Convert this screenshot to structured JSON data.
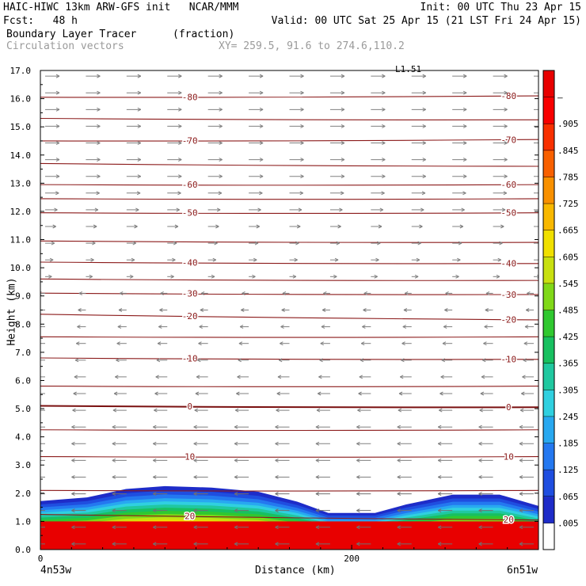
{
  "header": {
    "model_line": "HAIC-HIWC 13km ARW-GFS init   NCAR/MMM",
    "fcst_line": "Fcst:   48 h",
    "init_line": "Init: 00 UTC Thu 23 Apr 15",
    "valid_line": "Valid: 00 UTC Sat 25 Apr 15 (21 LST Fri 24 Apr 15)",
    "field_name": "Boundary Layer Tracer",
    "field_units": "(fraction)",
    "vector_label": "Circulation vectors",
    "xy_label": "XY= 259.5, 91.6 to 274.6,110.2"
  },
  "chart_data": {
    "type": "heatmap",
    "xlabel": "Distance (km)",
    "ylabel": "Height (km)",
    "x_ticks": [
      {
        "value": 0,
        "label": "0"
      },
      {
        "value": 200,
        "label": "200"
      }
    ],
    "xlim": [
      0,
      320
    ],
    "ylim": [
      0,
      17
    ],
    "y_ticks": [
      "0.0",
      "1.0",
      "2.0",
      "3.0",
      "4.0",
      "5.0",
      "6.0",
      "7.0",
      "8.0",
      "9.0",
      "10.0",
      "11.0",
      "12.0",
      "13.0",
      "14.0",
      "15.0",
      "16.0",
      "17.0"
    ],
    "left_endpoint_label": "4n53w",
    "right_endpoint_label": "6n51w",
    "top_marker_label": "L1.51",
    "colorbar": {
      "levels": [
        ".005",
        ".065",
        ".125",
        ".185",
        ".245",
        ".305",
        ".365",
        ".425",
        ".485",
        ".545",
        ".605",
        ".665",
        ".725",
        ".785",
        ".845",
        ".905",
        "–"
      ],
      "colors": [
        "#ffffff",
        "#1e2cc8",
        "#1f4ee0",
        "#2478f0",
        "#28a8f0",
        "#30d0e0",
        "#20c8a0",
        "#18c060",
        "#30c830",
        "#80d818",
        "#c8e010",
        "#f0e000",
        "#f8b800",
        "#f89000",
        "#f86000",
        "#f83000",
        "#f80000",
        "#e80000"
      ]
    },
    "temperature_contours": [
      {
        "label": "-80",
        "y_left": 16.05,
        "y_right": 16.1
      },
      {
        "label": "-70",
        "y_left": 14.5,
        "y_right": 14.55
      },
      {
        "label": "-60",
        "y_left": 12.95,
        "y_right": 12.95
      },
      {
        "label": "-50",
        "y_left": 11.95,
        "y_right": 11.95
      },
      {
        "label": "-40",
        "y_left": 10.2,
        "y_right": 10.15
      },
      {
        "label": "-30",
        "y_left": 9.1,
        "y_right": 9.05
      },
      {
        "label": "-20",
        "y_left": 8.35,
        "y_right": 8.15
      },
      {
        "label": "-10",
        "y_left": 6.8,
        "y_right": 6.75
      },
      {
        "label": "0",
        "y_left": 5.1,
        "y_right": 5.05
      },
      {
        "label": "10",
        "y_left": 3.3,
        "y_right": 3.3
      },
      {
        "label": "20",
        "y_left": 1.25,
        "y_right": 1.05
      }
    ],
    "unlabeled_contours": [
      {
        "y_left": 15.3,
        "y_right": 15.25
      },
      {
        "y_left": 13.7,
        "y_right": 13.6
      },
      {
        "y_left": 12.45,
        "y_right": 12.45
      },
      {
        "y_left": 10.95,
        "y_right": 10.9
      },
      {
        "y_left": 9.6,
        "y_right": 9.55
      },
      {
        "y_left": 7.55,
        "y_right": 7.55
      },
      {
        "y_left": 5.8,
        "y_right": 5.8
      },
      {
        "y_left": 4.25,
        "y_right": 4.25
      },
      {
        "y_left": 2.1,
        "y_right": 2.1
      }
    ],
    "tracer_top_km": [
      {
        "x": 0,
        "y": 1.72
      },
      {
        "x": 30,
        "y": 1.85
      },
      {
        "x": 55,
        "y": 2.15
      },
      {
        "x": 80,
        "y": 2.25
      },
      {
        "x": 110,
        "y": 2.2
      },
      {
        "x": 140,
        "y": 2.05
      },
      {
        "x": 165,
        "y": 1.7
      },
      {
        "x": 185,
        "y": 1.3
      },
      {
        "x": 215,
        "y": 1.3
      },
      {
        "x": 235,
        "y": 1.6
      },
      {
        "x": 265,
        "y": 1.95
      },
      {
        "x": 295,
        "y": 1.95
      },
      {
        "x": 320,
        "y": 1.55
      }
    ],
    "vector_field": {
      "columns": 13,
      "rows": 29,
      "upper_direction": "east",
      "lower_direction": "west",
      "reversal_height_km": 9.5
    }
  }
}
